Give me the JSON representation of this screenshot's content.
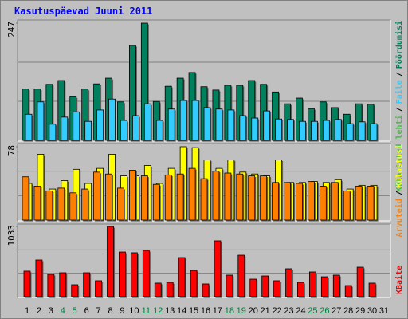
{
  "title": "Kasutuspäevad Juuni 2011",
  "legend_separator": "/",
  "chart_data": [
    {
      "type": "bar",
      "ylim": [
        0,
        247
      ],
      "yticks": [
        247
      ],
      "series": [
        {
          "name": "Pöördumisi",
          "color": "#00805c",
          "values": [
            108,
            108,
            118,
            126,
            92,
            108,
            119,
            131,
            81,
            200,
            247,
            82,
            114,
            131,
            143,
            113,
            106,
            116,
            116,
            126,
            118,
            102,
            77,
            89,
            67,
            81,
            69,
            55,
            77,
            76,
            null
          ]
        },
        {
          "name": "Faile",
          "color": "#33ccff",
          "values": [
            55,
            81,
            34,
            49,
            60,
            40,
            64,
            87,
            42,
            52,
            77,
            42,
            66,
            84,
            84,
            69,
            66,
            64,
            52,
            47,
            62,
            45,
            44,
            40,
            40,
            42,
            44,
            35,
            39,
            35,
            null
          ]
        }
      ],
      "legend_extra": {
        "name": "Külastatud lehti",
        "color": "#40c040"
      }
    },
    {
      "type": "bar",
      "ylim": [
        0,
        78
      ],
      "yticks": [
        78
      ],
      "series": [
        {
          "name": "Külastusi",
          "color": "#ffff00",
          "values": [
            39,
            70,
            33,
            42,
            54,
            39,
            55,
            70,
            47,
            47,
            58,
            39,
            55,
            78,
            77,
            64,
            55,
            64,
            51,
            49,
            47,
            64,
            40,
            40,
            41,
            40,
            43,
            33,
            37,
            37,
            null
          ]
        },
        {
          "name": "Arvuteid",
          "color": "#ff8000",
          "values": [
            46,
            36,
            31,
            34,
            29,
            33,
            51,
            49,
            34,
            53,
            47,
            38,
            48,
            49,
            55,
            44,
            52,
            50,
            49,
            47,
            47,
            40,
            40,
            39,
            41,
            36,
            40,
            31,
            36,
            36,
            null
          ]
        }
      ]
    },
    {
      "type": "bar",
      "ylim": [
        0,
        1033
      ],
      "yticks": [
        1033
      ],
      "series": [
        {
          "name": "KBaite",
          "color": "#ff0000",
          "values": [
            376,
            540,
            329,
            352,
            176,
            352,
            235,
            1033,
            657,
            646,
            681,
            200,
            211,
            575,
            387,
            188,
            822,
            317,
            610,
            258,
            305,
            235,
            411,
            211,
            364,
            293,
            317,
            164,
            434,
            200,
            null
          ]
        }
      ],
      "categories": [
        "1",
        "2",
        "3",
        "4",
        "5",
        "6",
        "7",
        "8",
        "9",
        "10",
        "11",
        "12",
        "13",
        "14",
        "15",
        "16",
        "17",
        "18",
        "19",
        "20",
        "21",
        "22",
        "23",
        "24",
        "25",
        "26",
        "27",
        "28",
        "29",
        "30",
        "31"
      ],
      "category_colors": [
        "#000000",
        "#000000",
        "#000000",
        "#008040",
        "#008040",
        "#000000",
        "#000000",
        "#000000",
        "#000000",
        "#000000",
        "#008040",
        "#008040",
        "#000000",
        "#000000",
        "#000000",
        "#000000",
        "#000000",
        "#008040",
        "#008040",
        "#000000",
        "#000000",
        "#000000",
        "#000000",
        "#000000",
        "#008040",
        "#008040",
        "#000000",
        "#000000",
        "#000000",
        "#000000",
        "#000000"
      ]
    }
  ]
}
